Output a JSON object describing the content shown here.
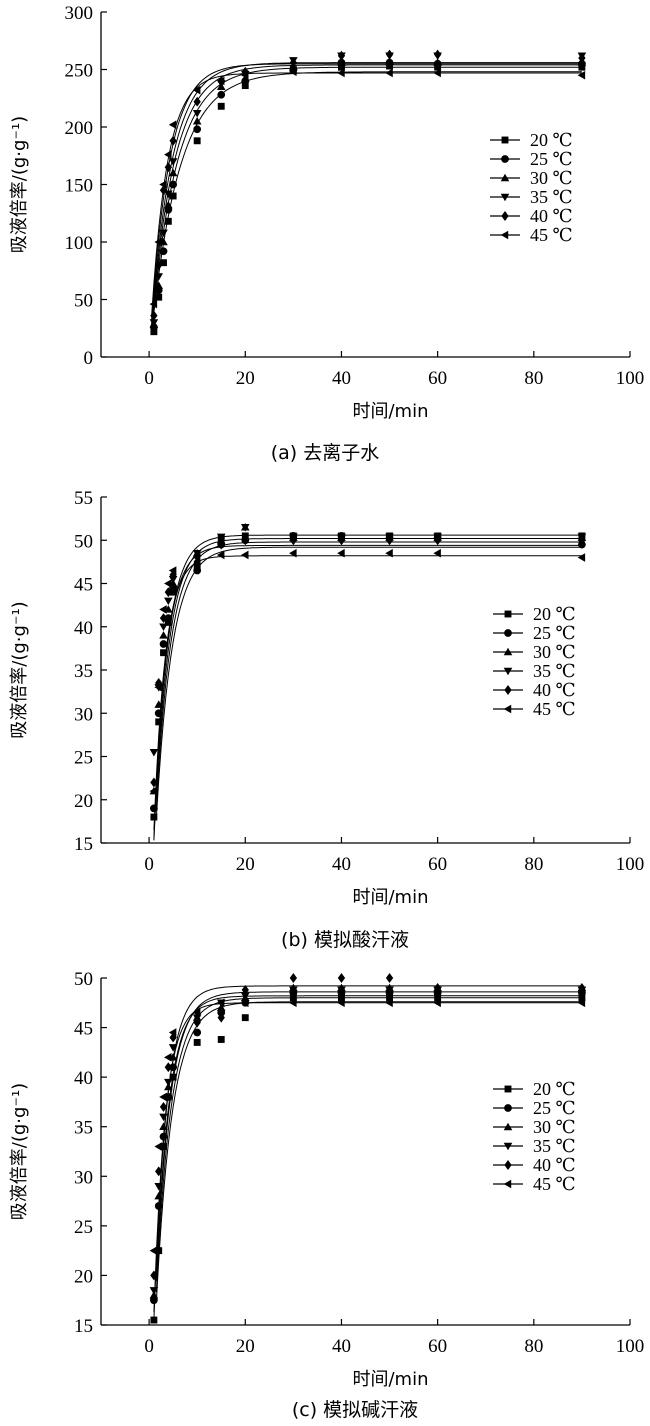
{
  "figure": {
    "x_unit_label": "时间/min",
    "y_unit_label": "吸液倍率/(g·g⁻¹)"
  },
  "chart_data": [
    {
      "type": "scatter",
      "caption": "(a) 去离子水",
      "xlabel": "时间/min",
      "ylabel": "吸液倍率/(g·g⁻¹)",
      "xlim": [
        -10,
        100
      ],
      "ylim": [
        0,
        300
      ],
      "xticks": [
        0,
        20,
        40,
        60,
        80,
        100
      ],
      "yticks": [
        0,
        50,
        100,
        150,
        200,
        250,
        300
      ],
      "grid": false,
      "legend_position": "right",
      "x": [
        1,
        2,
        3,
        4,
        5,
        10,
        15,
        20,
        30,
        40,
        50,
        60,
        90
      ],
      "series": [
        {
          "name": "20 ℃",
          "marker": "square",
          "values": [
            22,
            52,
            82,
            118,
            140,
            188,
            218,
            236,
            250,
            252,
            253,
            252,
            252
          ],
          "fit": {
            "qe": 248,
            "k": 0.17
          }
        },
        {
          "name": "25 ℃",
          "marker": "circle",
          "values": [
            26,
            58,
            92,
            128,
            150,
            198,
            228,
            240,
            250,
            256,
            256,
            255,
            255
          ],
          "fit": {
            "qe": 252,
            "k": 0.19
          }
        },
        {
          "name": "30 ℃",
          "marker": "triangle-up",
          "values": [
            28,
            62,
            100,
            132,
            160,
            205,
            235,
            242,
            252,
            256,
            257,
            256,
            256
          ],
          "fit": {
            "qe": 254,
            "k": 0.21
          }
        },
        {
          "name": "35 ℃",
          "marker": "triangle-down",
          "values": [
            30,
            70,
            108,
            142,
            170,
            212,
            238,
            246,
            258,
            262,
            262,
            262,
            262
          ],
          "fit": {
            "qe": 256,
            "k": 0.23
          }
        },
        {
          "name": "40 ℃",
          "marker": "diamond",
          "values": [
            36,
            80,
            145,
            165,
            188,
            222,
            240,
            248,
            256,
            262,
            263,
            263,
            260
          ],
          "fit": {
            "qe": 255,
            "k": 0.26
          }
        },
        {
          "name": "45 ℃",
          "marker": "triangle-left",
          "values": [
            46,
            100,
            150,
            176,
            202,
            232,
            240,
            245,
            248,
            247,
            247,
            247,
            245
          ],
          "fit": {
            "qe": 247,
            "k": 0.3
          }
        }
      ]
    },
    {
      "type": "scatter",
      "caption": "(b) 模拟酸汗液",
      "xlabel": "时间/min",
      "ylabel": "吸液倍率/(g·g⁻¹)",
      "xlim": [
        -10,
        100
      ],
      "ylim": [
        15,
        55
      ],
      "xticks": [
        0,
        20,
        40,
        60,
        80,
        100
      ],
      "yticks": [
        15,
        20,
        25,
        30,
        35,
        40,
        45,
        50,
        55
      ],
      "grid": false,
      "legend_position": "right",
      "x": [
        1,
        2,
        3,
        4,
        5,
        10,
        15,
        20,
        30,
        40,
        50,
        60,
        90
      ],
      "series": [
        {
          "name": "20 ℃",
          "marker": "square",
          "values": [
            18,
            29,
            37,
            40.5,
            44,
            47,
            50.3,
            50.5,
            50.5,
            50.5,
            50.5,
            50.5,
            50.5
          ],
          "fit": {
            "qe": 49.2,
            "k": 0.3
          }
        },
        {
          "name": "25 ℃",
          "marker": "circle",
          "values": [
            19,
            30,
            38,
            41,
            44.5,
            46.5,
            49.5,
            50,
            50.5,
            50.5,
            50.3,
            50.3,
            49.5
          ],
          "fit": {
            "qe": 49.8,
            "k": 0.32
          }
        },
        {
          "name": "30 ℃",
          "marker": "triangle-up",
          "values": [
            21,
            31,
            39,
            42,
            45,
            48.5,
            50,
            51.5,
            50.3,
            50.3,
            50.3,
            50.3,
            50.3
          ],
          "fit": {
            "qe": 50.2,
            "k": 0.34
          }
        },
        {
          "name": "35 ℃",
          "marker": "triangle-down",
          "values": [
            25.5,
            33,
            40,
            43,
            45.5,
            48.5,
            50.4,
            51.5,
            50.4,
            50.4,
            50.4,
            50.4,
            50.4
          ],
          "fit": {
            "qe": 50.6,
            "k": 0.36
          }
        },
        {
          "name": "40 ℃",
          "marker": "diamond",
          "values": [
            22,
            33.5,
            41,
            44,
            46,
            47.5,
            49.5,
            50,
            50,
            50,
            50,
            50,
            50
          ],
          "fit": {
            "qe": 49.4,
            "k": 0.38
          }
        },
        {
          "name": "45 ℃",
          "marker": "triangle-left",
          "values": [
            21,
            33,
            42,
            45,
            46.5,
            48,
            48.3,
            48.3,
            48.5,
            48.5,
            48.5,
            48.5,
            48
          ],
          "fit": {
            "qe": 48.2,
            "k": 0.42
          }
        }
      ]
    },
    {
      "type": "scatter",
      "caption": "(c) 模拟碱汗液",
      "xlabel": "时间/min",
      "ylabel": "吸液倍率/(g·g⁻¹)",
      "xlim": [
        -10,
        100
      ],
      "ylim": [
        15,
        50
      ],
      "xticks": [
        0,
        20,
        40,
        60,
        80,
        100
      ],
      "yticks": [
        15,
        20,
        25,
        30,
        35,
        40,
        45,
        50
      ],
      "grid": false,
      "legend_position": "right",
      "x": [
        1,
        2,
        3,
        4,
        5,
        10,
        15,
        20,
        30,
        40,
        50,
        60,
        90
      ],
      "series": [
        {
          "name": "20 ℃",
          "marker": "square",
          "values": [
            15.5,
            22.5,
            33,
            38,
            40,
            43.5,
            43.8,
            46,
            48,
            48,
            48,
            48,
            48
          ],
          "fit": {
            "qe": 47.6,
            "k": 0.3
          }
        },
        {
          "name": "25 ℃",
          "marker": "circle",
          "values": [
            17.5,
            27,
            34,
            38,
            41,
            44.5,
            46.5,
            47.5,
            48.5,
            48.5,
            48.5,
            48.5,
            48.5
          ],
          "fit": {
            "qe": 48.0,
            "k": 0.32
          }
        },
        {
          "name": "30 ℃",
          "marker": "triangle-up",
          "values": [
            18,
            28,
            35,
            39,
            42,
            46,
            47,
            48,
            49,
            49,
            49,
            49,
            49
          ],
          "fit": {
            "qe": 48.6,
            "k": 0.34
          }
        },
        {
          "name": "35 ℃",
          "marker": "triangle-down",
          "values": [
            18.5,
            29,
            36,
            39.5,
            43,
            46,
            47.5,
            48.2,
            48.8,
            48.8,
            48.8,
            48.8,
            48.8
          ],
          "fit": {
            "qe": 48.2,
            "k": 0.36
          }
        },
        {
          "name": "40 ℃",
          "marker": "diamond",
          "values": [
            20,
            30.5,
            37,
            41,
            44,
            45.5,
            46,
            48.8,
            50,
            50,
            50,
            49,
            49
          ],
          "fit": {
            "qe": 49.2,
            "k": 0.38
          }
        },
        {
          "name": "45 ℃",
          "marker": "triangle-left",
          "values": [
            22.5,
            33,
            38,
            42,
            44.5,
            46.5,
            47.5,
            47.5,
            47.5,
            47.5,
            47.5,
            47.5,
            47.5
          ],
          "fit": {
            "qe": 47.5,
            "k": 0.42
          }
        }
      ]
    }
  ]
}
